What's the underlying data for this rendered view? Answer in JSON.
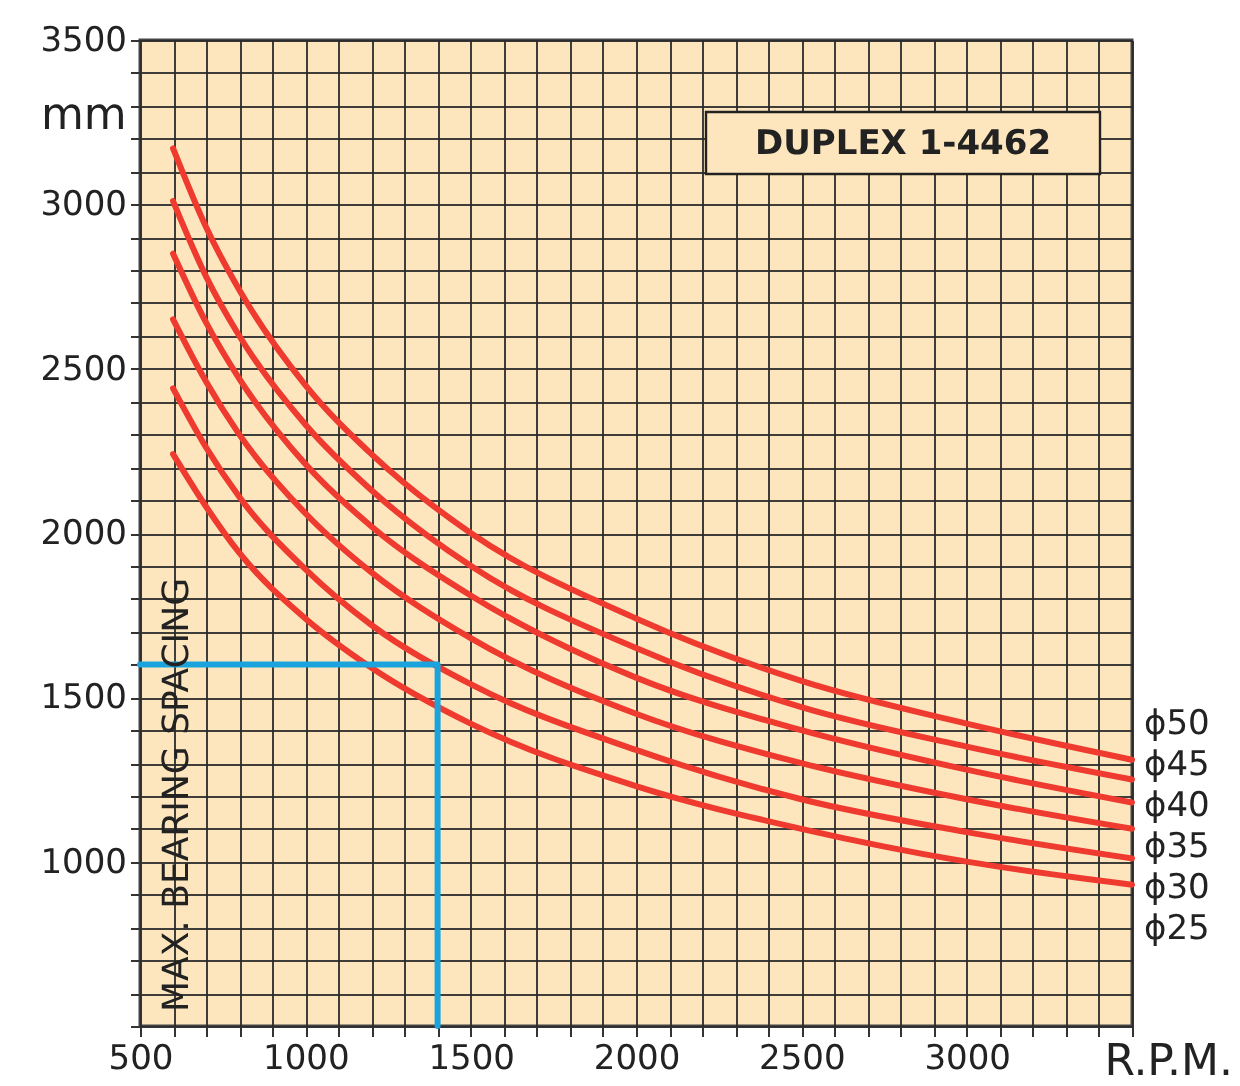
{
  "chart_data": {
    "type": "line",
    "title": "DUPLEX 1-4462",
    "xlabel": "R.P.M.",
    "ylabel": "mm",
    "annotations": [
      "MAX. BEARING SPACING"
    ],
    "series": [
      {
        "name": "ϕ50",
        "color": "#ee3a2f",
        "x": [
          600,
          700,
          800,
          1000,
          1200,
          1500,
          2000,
          2500,
          3000,
          3500
        ],
        "values": [
          3170,
          2930,
          2740,
          2450,
          2240,
          2000,
          1740,
          1550,
          1420,
          1310
        ]
      },
      {
        "name": "ϕ45",
        "color": "#ee3a2f",
        "x": [
          600,
          700,
          800,
          1000,
          1200,
          1500,
          2000,
          2500,
          3000,
          3500
        ],
        "values": [
          3010,
          2780,
          2600,
          2330,
          2130,
          1900,
          1650,
          1470,
          1350,
          1250
        ]
      },
      {
        "name": "ϕ40",
        "color": "#ee3a2f",
        "x": [
          600,
          700,
          800,
          1000,
          1200,
          1500,
          2000,
          2500,
          3000,
          3500
        ],
        "values": [
          2850,
          2640,
          2470,
          2210,
          2020,
          1810,
          1560,
          1400,
          1280,
          1180
        ]
      },
      {
        "name": "ϕ35",
        "color": "#ee3a2f",
        "x": [
          600,
          700,
          800,
          1000,
          1200,
          1500,
          2000,
          2500,
          3000,
          3500
        ],
        "values": [
          2650,
          2460,
          2300,
          2060,
          1880,
          1680,
          1450,
          1300,
          1190,
          1100
        ]
      },
      {
        "name": "ϕ30",
        "color": "#ee3a2f",
        "x": [
          600,
          700,
          800,
          1000,
          1200,
          1500,
          2000,
          2500,
          3000,
          3500
        ],
        "values": [
          2440,
          2260,
          2110,
          1890,
          1720,
          1540,
          1340,
          1190,
          1090,
          1010
        ]
      },
      {
        "name": "ϕ25",
        "color": "#ee3a2f",
        "x": [
          600,
          700,
          800,
          1000,
          1200,
          1500,
          2000,
          2500,
          3000,
          3500
        ],
        "values": [
          2240,
          2080,
          1940,
          1740,
          1590,
          1420,
          1230,
          1100,
          1000,
          930
        ]
      },
      {
        "color": "#1aa3dd",
        "x": [
          500,
          1400,
          1400
        ],
        "values": [
          1600,
          1600,
          500
        ]
      }
    ],
    "xlim": [
      500,
      3500
    ],
    "ylim": [
      500,
      3500
    ],
    "xticks": [
      500,
      {
        "value": 600,
        "label": null
      },
      {
        "value": 700,
        "label": null
      },
      {
        "value": 800,
        "label": null
      },
      {
        "value": 900,
        "label": null
      },
      1000,
      {
        "value": 1100,
        "label": null
      },
      {
        "value": 1200,
        "label": null
      },
      {
        "value": 1300,
        "label": null
      },
      {
        "value": 1400,
        "label": null
      },
      1500,
      {
        "value": 1600,
        "label": null
      },
      {
        "value": 1700,
        "label": null
      },
      {
        "value": 1800,
        "label": null
      },
      {
        "value": 1900,
        "label": null
      },
      2000,
      {
        "value": 2100,
        "label": null
      },
      {
        "value": 2200,
        "label": null
      },
      {
        "value": 2300,
        "label": null
      },
      {
        "value": 2400,
        "label": null
      },
      2500,
      {
        "value": 2600,
        "label": null
      },
      {
        "value": 2700,
        "label": null
      },
      {
        "value": 2800,
        "label": null
      },
      {
        "value": 2900,
        "label": null
      },
      3000,
      {
        "value": 3100,
        "label": null
      },
      {
        "value": 3200,
        "label": null
      },
      {
        "value": 3300,
        "label": null
      },
      {
        "value": 3400,
        "label": null
      },
      {
        "value": 3500,
        "label": null
      }
    ],
    "yticks": [
      {
        "value": 500,
        "label": null
      },
      {
        "value": 600,
        "label": null
      },
      {
        "value": 700,
        "label": null
      },
      {
        "value": 800,
        "label": null
      },
      {
        "value": 900,
        "label": null
      },
      1000,
      {
        "value": 1100,
        "label": null
      },
      {
        "value": 1200,
        "label": null
      },
      {
        "value": 1300,
        "label": null
      },
      {
        "value": 1400,
        "label": null
      },
      1500,
      {
        "value": 1600,
        "label": null
      },
      {
        "value": 1700,
        "label": null
      },
      {
        "value": 1800,
        "label": null
      },
      {
        "value": 1900,
        "label": null
      },
      2000,
      {
        "value": 2100,
        "label": null
      },
      {
        "value": 2200,
        "label": null
      },
      {
        "value": 2300,
        "label": null
      },
      {
        "value": 2400,
        "label": null
      },
      2500,
      {
        "value": 2600,
        "label": null
      },
      {
        "value": 2700,
        "label": null
      },
      {
        "value": 2800,
        "label": null
      },
      {
        "value": 2900,
        "label": null
      },
      3000,
      {
        "value": 3100,
        "label": null
      },
      {
        "value": 3200,
        "label": null
      },
      {
        "value": 3300,
        "label": null
      },
      {
        "value": 3400,
        "label": null
      },
      3500
    ],
    "grid": true
  }
}
